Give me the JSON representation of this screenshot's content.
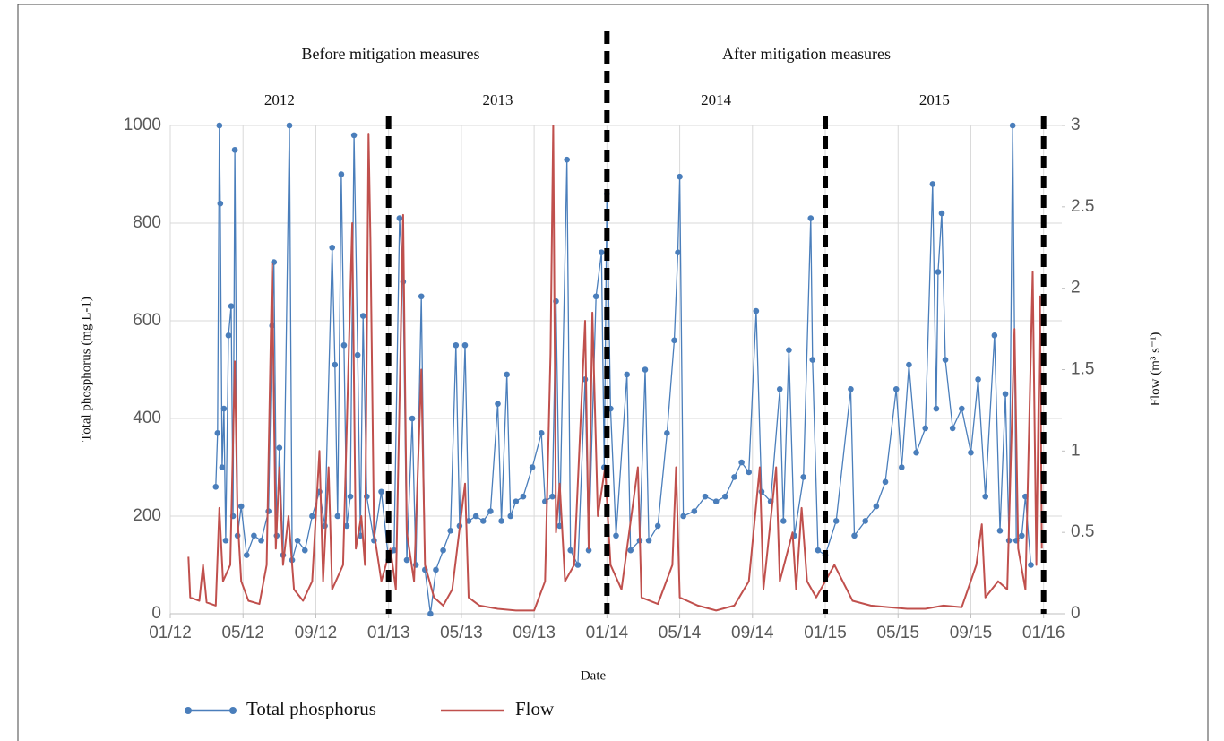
{
  "chart_data": {
    "type": "line",
    "y_label": "Total phosphorus (mg L-1)",
    "y2_label": "Flow (m³ s⁻¹)",
    "x_label": "Date",
    "annotations": [
      "Before mitigation measures",
      "After mitigation measures"
    ],
    "period_labels": [
      "2012",
      "2013",
      "2014",
      "2015"
    ],
    "vlines": [
      12,
      24,
      36,
      48
    ],
    "xlim": [
      0,
      49
    ],
    "xticks": [
      {
        "value": 0,
        "label": "01/12"
      },
      {
        "value": 4,
        "label": "05/12"
      },
      {
        "value": 8,
        "label": "09/12"
      },
      {
        "value": 12,
        "label": "01/13"
      },
      {
        "value": 16,
        "label": "05/13"
      },
      {
        "value": 20,
        "label": "09/13"
      },
      {
        "value": 24,
        "label": "01/14"
      },
      {
        "value": 28,
        "label": "05/14"
      },
      {
        "value": 32,
        "label": "09/14"
      },
      {
        "value": 36,
        "label": "01/15"
      },
      {
        "value": 40,
        "label": "05/15"
      },
      {
        "value": 44,
        "label": "09/15"
      },
      {
        "value": 48,
        "label": "01/16"
      }
    ],
    "ylim": [
      0,
      1000
    ],
    "yticks": [
      0,
      200,
      400,
      600,
      800,
      1000
    ],
    "y2lim": [
      0,
      3
    ],
    "y2ticks": [
      0,
      0.5,
      1,
      1.5,
      2,
      2.5,
      3
    ],
    "grid": true,
    "series": [
      {
        "name": "Total phosphorus",
        "color": "#4a7ebb",
        "markers": true,
        "x": [
          2.5,
          2.6,
          2.7,
          2.75,
          2.85,
          2.95,
          3.05,
          3.2,
          3.35,
          3.45,
          3.55,
          3.7,
          3.9,
          4.2,
          4.6,
          5.0,
          5.4,
          5.6,
          5.7,
          5.85,
          6.0,
          6.2,
          6.55,
          6.7,
          7.0,
          7.4,
          7.8,
          8.2,
          8.5,
          8.9,
          9.05,
          9.2,
          9.4,
          9.55,
          9.7,
          9.9,
          10.1,
          10.3,
          10.45,
          10.6,
          10.8,
          11.2,
          11.6,
          12.0,
          12.3,
          12.6,
          12.8,
          13.0,
          13.3,
          13.5,
          13.8,
          14.0,
          14.3,
          14.6,
          15.0,
          15.4,
          15.7,
          15.9,
          16.2,
          16.4,
          16.8,
          17.2,
          17.6,
          18.0,
          18.2,
          18.5,
          18.7,
          19.0,
          19.4,
          19.9,
          20.4,
          20.6,
          21.0,
          21.2,
          21.4,
          21.8,
          22.0,
          22.4,
          22.8,
          23.0,
          23.4,
          23.7,
          23.85,
          24.0,
          24.2,
          24.5,
          25.1,
          25.3,
          25.8,
          26.1,
          26.3,
          26.8,
          27.3,
          27.7,
          27.9,
          28.0,
          28.2,
          28.8,
          29.4,
          30.0,
          30.5,
          31.0,
          31.4,
          31.8,
          32.2,
          32.5,
          33.0,
          33.5,
          33.7,
          34.0,
          34.3,
          34.8,
          35.2,
          35.3,
          35.6,
          36.0,
          36.6,
          37.4,
          37.6,
          38.2,
          38.8,
          39.3,
          39.9,
          40.2,
          40.6,
          41.0,
          41.5,
          41.9,
          42.1,
          42.2,
          42.4,
          42.6,
          43.0,
          43.5,
          44.0,
          44.4,
          44.8,
          45.3,
          45.6,
          45.9,
          46.1,
          46.3,
          46.5,
          46.8,
          47.0,
          47.3
        ],
        "values": [
          260,
          370,
          1000,
          840,
          300,
          420,
          150,
          570,
          630,
          200,
          950,
          160,
          220,
          120,
          160,
          150,
          210,
          590,
          720,
          160,
          340,
          120,
          1000,
          110,
          150,
          130,
          200,
          250,
          180,
          750,
          510,
          200,
          900,
          550,
          180,
          240,
          980,
          530,
          160,
          610,
          240,
          150,
          250,
          110,
          130,
          810,
          680,
          110,
          400,
          100,
          650,
          90,
          0,
          90,
          130,
          170,
          550,
          180,
          550,
          190,
          200,
          190,
          210,
          430,
          190,
          490,
          200,
          230,
          240,
          300,
          370,
          230,
          240,
          640,
          180,
          930,
          130,
          100,
          480,
          130,
          650,
          740,
          300,
          860,
          420,
          160,
          490,
          130,
          150,
          500,
          150,
          180,
          370,
          560,
          740,
          895,
          200,
          210,
          240,
          230,
          240,
          280,
          310,
          290,
          620,
          250,
          230,
          460,
          190,
          540,
          160,
          280,
          810,
          520,
          130,
          120,
          190,
          460,
          160,
          190,
          220,
          270,
          460,
          300,
          510,
          330,
          380,
          880,
          420,
          700,
          820,
          520,
          380,
          420,
          330,
          480,
          240,
          570,
          170,
          450,
          150,
          1000,
          150,
          160,
          240,
          100
        ]
      },
      {
        "name": "Flow",
        "color": "#c0504d",
        "axis": "y2",
        "x": [
          1.0,
          1.1,
          1.6,
          1.8,
          2.0,
          2.5,
          2.7,
          2.9,
          3.3,
          3.55,
          3.7,
          3.9,
          4.3,
          4.9,
          5.3,
          5.6,
          5.8,
          6.0,
          6.2,
          6.5,
          6.8,
          7.3,
          7.8,
          8.2,
          8.4,
          8.7,
          8.9,
          9.5,
          10.0,
          10.2,
          10.5,
          10.7,
          10.9,
          11.0,
          11.2,
          11.6,
          12.1,
          12.4,
          12.8,
          13.0,
          13.4,
          13.8,
          14.0,
          14.5,
          15.0,
          15.5,
          16.2,
          16.4,
          17.0,
          18.0,
          19.0,
          20.0,
          20.6,
          20.9,
          21.05,
          21.2,
          21.4,
          21.7,
          22.2,
          22.8,
          23.0,
          23.2,
          23.5,
          23.9,
          24.2,
          24.8,
          25.7,
          25.9,
          26.8,
          27.6,
          27.8,
          28.0,
          29.0,
          30.0,
          31.0,
          31.8,
          32.4,
          32.6,
          33.3,
          33.5,
          34.2,
          34.4,
          34.7,
          35.0,
          35.5,
          36.5,
          37.5,
          38.5,
          39.5,
          40.5,
          41.5,
          42.5,
          43.5,
          44.3,
          44.6,
          44.8,
          45.5,
          46.0,
          46.4,
          46.6,
          47.0,
          47.4,
          47.6,
          47.8,
          47.9
        ],
        "values": [
          0.35,
          0.1,
          0.08,
          0.3,
          0.07,
          0.05,
          0.65,
          0.2,
          0.3,
          1.55,
          0.6,
          0.2,
          0.08,
          0.06,
          0.3,
          2.15,
          0.4,
          0.9,
          0.3,
          0.6,
          0.15,
          0.08,
          0.2,
          1.0,
          0.2,
          0.9,
          0.15,
          0.3,
          2.4,
          0.4,
          0.6,
          0.3,
          2.95,
          2.3,
          0.5,
          0.2,
          0.4,
          0.15,
          2.45,
          0.5,
          0.2,
          1.5,
          0.3,
          0.1,
          0.05,
          0.15,
          0.8,
          0.1,
          0.05,
          0.03,
          0.02,
          0.02,
          0.2,
          1.6,
          3.0,
          0.5,
          0.8,
          0.2,
          0.3,
          1.8,
          0.4,
          1.85,
          0.6,
          0.9,
          0.3,
          0.15,
          0.9,
          0.1,
          0.06,
          0.3,
          0.9,
          0.1,
          0.05,
          0.02,
          0.05,
          0.2,
          0.9,
          0.15,
          0.9,
          0.2,
          0.5,
          0.15,
          0.65,
          0.2,
          0.1,
          0.3,
          0.08,
          0.05,
          0.04,
          0.03,
          0.03,
          0.05,
          0.04,
          0.3,
          0.55,
          0.1,
          0.2,
          0.15,
          1.75,
          0.4,
          0.15,
          2.1,
          0.3,
          1.95,
          0.4
        ]
      }
    ]
  }
}
